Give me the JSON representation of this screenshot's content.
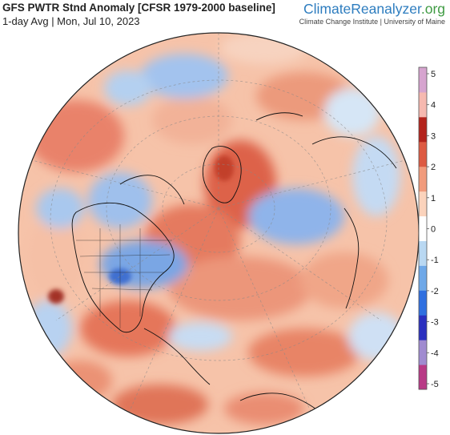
{
  "header": {
    "title": "GFS PWTR Stnd Anomaly [CFSR 1979-2000 baseline]",
    "subtitle": "1-day Avg | Mon, Jul 10, 2023"
  },
  "brand": {
    "name_part1": "ClimateReanalyzer",
    "name_part2": ".org",
    "tagline": "Climate Change Institute | University of Maine"
  },
  "map": {
    "projection": "orthographic",
    "center": "North Atlantic / North Pole"
  },
  "colorbar": {
    "ticks": [
      "5",
      "4",
      "3",
      "2",
      "1",
      "0",
      "-1",
      "-2",
      "-3",
      "-4",
      "-5"
    ],
    "min": -5,
    "max": 5,
    "colors": [
      "#b83a86",
      "#a08bd0",
      "#2a2fbf",
      "#2f6fe0",
      "#6ea8e8",
      "#b9d8f2",
      "#ffffff",
      "#fbd3bc",
      "#f19b7c",
      "#dd5a42",
      "#b3231c",
      "#f6b9b0",
      "#d6a4cf"
    ]
  }
}
